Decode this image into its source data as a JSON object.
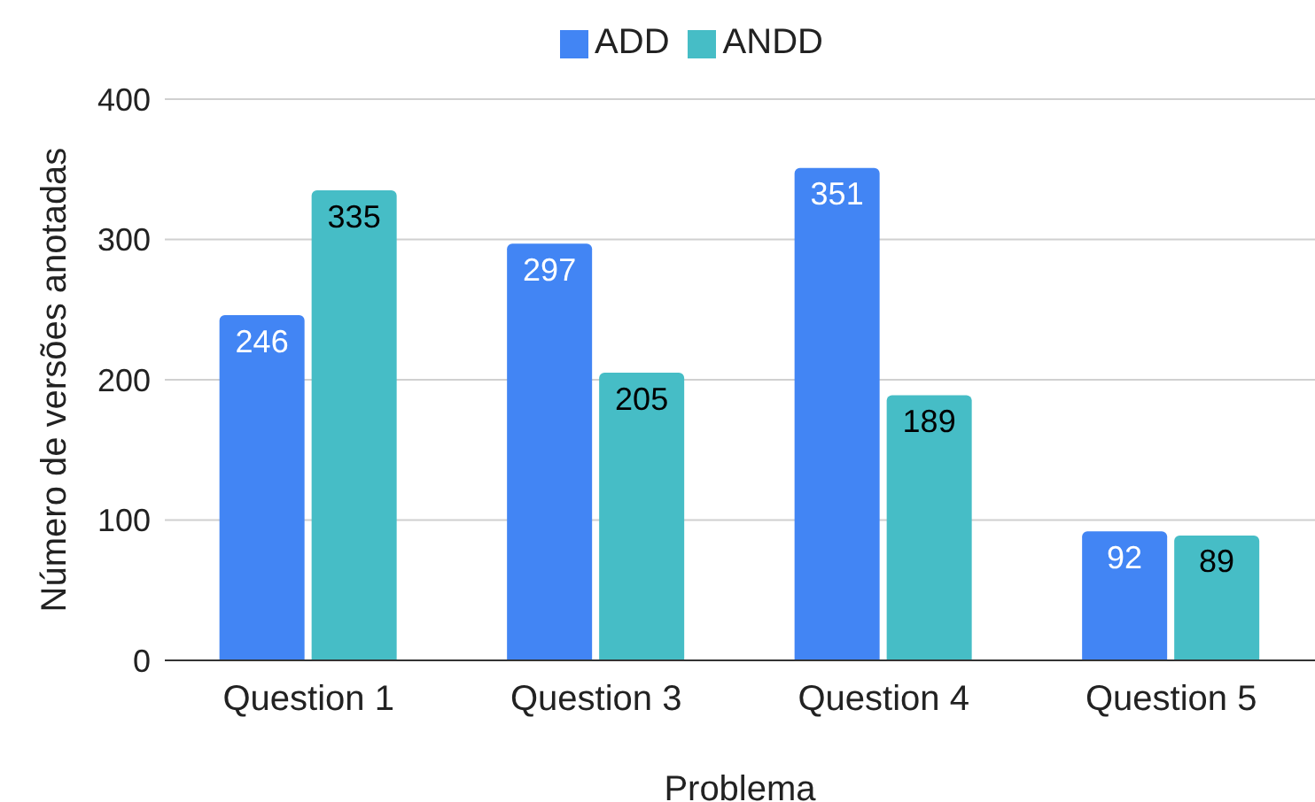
{
  "chart_data": {
    "type": "bar",
    "xlabel": "Problema",
    "ylabel": "Número de versões anotadas",
    "categories": [
      "Question 1",
      "Question 3",
      "Question 4",
      "Question 5"
    ],
    "series": [
      {
        "name": "ADD",
        "color": "#4285f4",
        "values": [
          246,
          297,
          351,
          92
        ]
      },
      {
        "name": "ANDD",
        "color": "#46bdc6",
        "values": [
          335,
          205,
          189,
          89
        ]
      }
    ],
    "ylim": [
      0,
      400
    ],
    "yticks": [
      0,
      100,
      200,
      300,
      400
    ],
    "grid": "y",
    "legend": "top",
    "data_labels": true
  }
}
